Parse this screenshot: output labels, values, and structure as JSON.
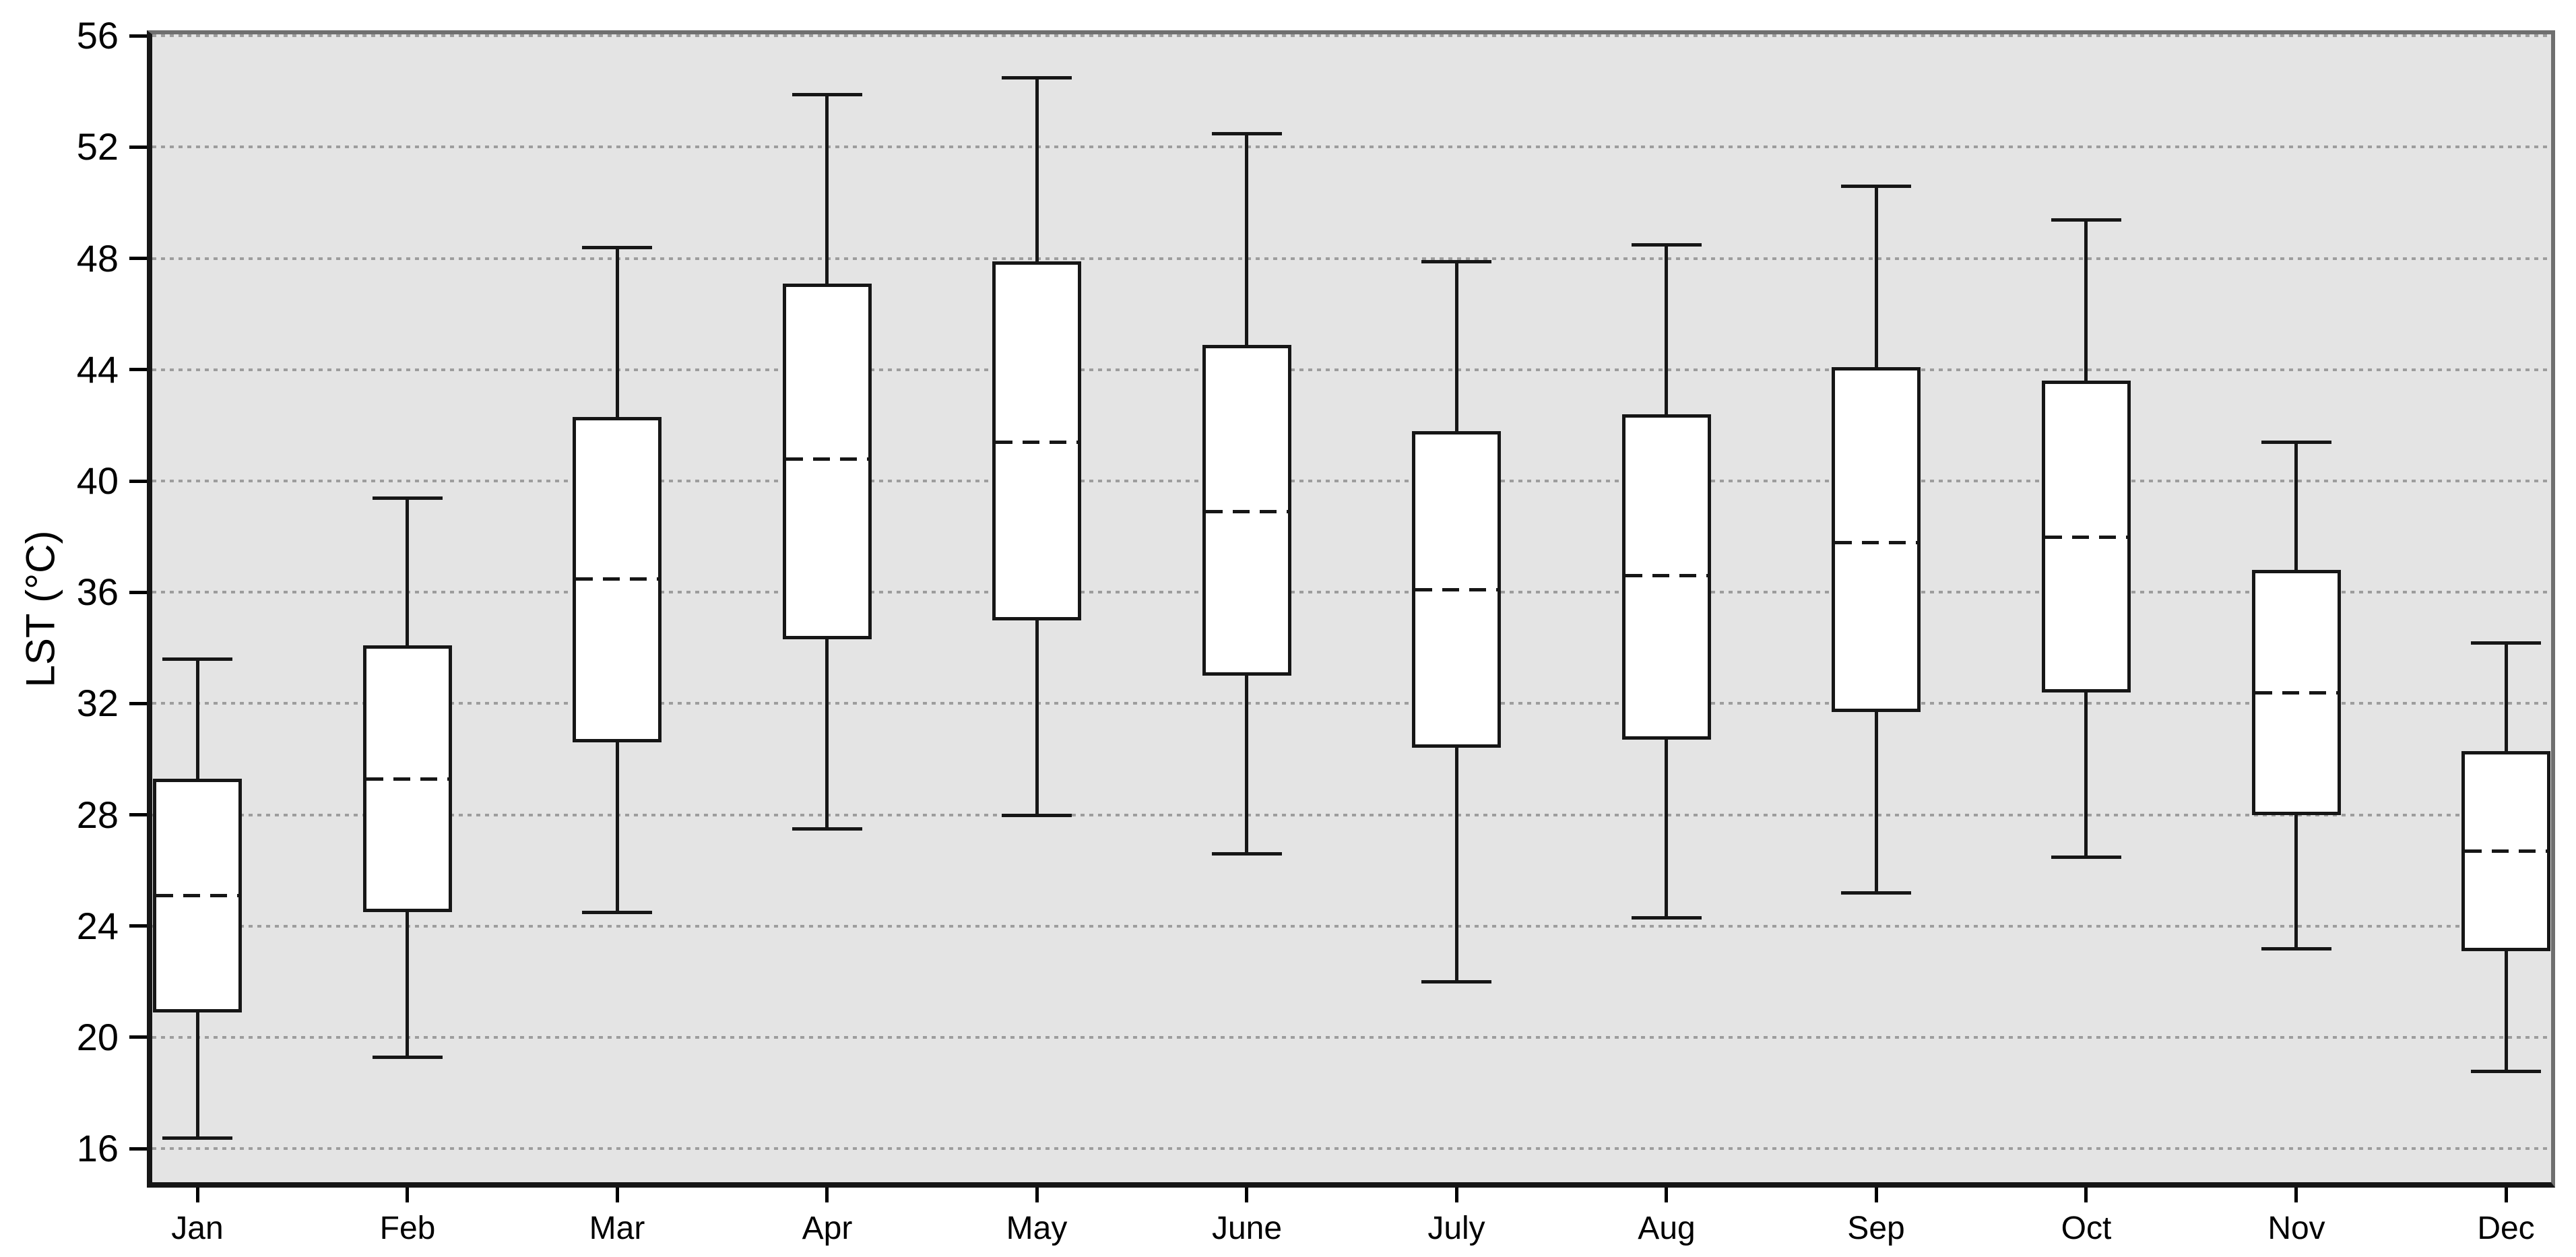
{
  "figure": {
    "y_axis_title": "LST (°C)",
    "plot_background": "#e4e4e4",
    "gridline_color": "#9d9d9d",
    "box_fill": "#ffffff",
    "line_color": "#161616"
  },
  "chart_data": {
    "type": "box",
    "title": "",
    "xlabel": "",
    "ylabel": "LST (°C)",
    "ylim": [
      14.6,
      56.2
    ],
    "yticks": [
      16,
      20,
      24,
      28,
      32,
      36,
      40,
      44,
      48,
      52,
      56
    ],
    "grid": "horizontal dotted lines at every y tick",
    "legend": "none",
    "categories": [
      "Jan",
      "Feb",
      "Mar",
      "Apr",
      "May",
      "June",
      "July",
      "Aug",
      "Sep",
      "Oct",
      "Nov",
      "Dec"
    ],
    "series": [
      {
        "month": "Jan",
        "min": 16.4,
        "q1": 20.9,
        "median": 25.1,
        "q3": 29.3,
        "max": 33.6
      },
      {
        "month": "Feb",
        "min": 19.3,
        "q1": 24.5,
        "median": 29.3,
        "q3": 34.1,
        "max": 39.4
      },
      {
        "month": "Mar",
        "min": 24.5,
        "q1": 30.6,
        "median": 36.5,
        "q3": 42.3,
        "max": 48.4
      },
      {
        "month": "Apr",
        "min": 27.5,
        "q1": 34.3,
        "median": 40.8,
        "q3": 47.1,
        "max": 53.9
      },
      {
        "month": "May",
        "min": 28.0,
        "q1": 35.0,
        "median": 41.4,
        "q3": 47.9,
        "max": 54.5
      },
      {
        "month": "June",
        "min": 26.6,
        "q1": 33.0,
        "median": 38.9,
        "q3": 44.9,
        "max": 52.5
      },
      {
        "month": "July",
        "min": 22.0,
        "q1": 30.4,
        "median": 36.1,
        "q3": 41.8,
        "max": 47.9
      },
      {
        "month": "Aug",
        "min": 24.3,
        "q1": 30.7,
        "median": 36.6,
        "q3": 42.4,
        "max": 48.5
      },
      {
        "month": "Sep",
        "min": 25.2,
        "q1": 31.7,
        "median": 37.8,
        "q3": 44.1,
        "max": 50.6
      },
      {
        "month": "Oct",
        "min": 26.5,
        "q1": 32.4,
        "median": 38.0,
        "q3": 43.6,
        "max": 49.4
      },
      {
        "month": "Nov",
        "min": 23.2,
        "q1": 28.0,
        "median": 32.4,
        "q3": 36.8,
        "max": 41.4
      },
      {
        "month": "Dec",
        "min": 18.8,
        "q1": 23.1,
        "median": 26.7,
        "q3": 30.3,
        "max": 34.2
      }
    ]
  }
}
